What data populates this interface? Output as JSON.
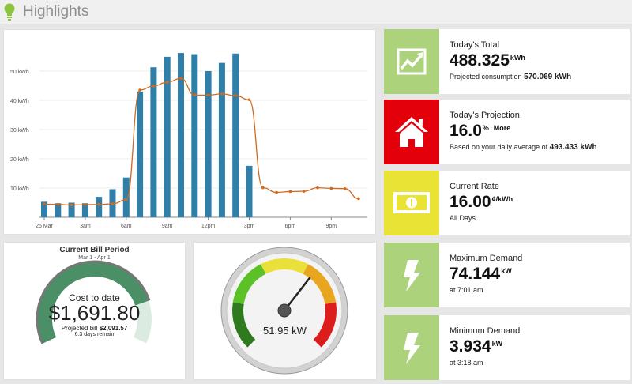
{
  "header": {
    "title": "Highlights",
    "icon": "lightbulb-icon",
    "icon_color": "#8cc43e"
  },
  "chart_data": {
    "type": "bar",
    "bar_color": "#2f7fa8",
    "line_color": "#d2691e",
    "x_tick_labels": [
      "25 Mar",
      "3am",
      "6am",
      "9am",
      "12pm",
      "3pm",
      "6pm",
      "9pm"
    ],
    "x_tick_hours": [
      0,
      3,
      6,
      9,
      12,
      15,
      18,
      21
    ],
    "y_tick_labels": [
      "10 kWh",
      "20 kWh",
      "30 kWh",
      "40 kWh",
      "50 kWh"
    ],
    "y_ticks": [
      10,
      20,
      30,
      40,
      50
    ],
    "ylim": [
      0,
      60
    ],
    "grid": true,
    "series": [
      {
        "type": "bar",
        "hours": [
          0,
          1,
          2,
          3,
          4,
          5,
          6,
          7,
          8,
          9,
          10,
          11,
          12,
          13,
          14,
          15
        ],
        "values": [
          5.3,
          4.8,
          5.0,
          4.8,
          7.0,
          9.6,
          13.6,
          43.0,
          51.3,
          54.9,
          56.2,
          55.8,
          50.0,
          52.8,
          56.0,
          17.6
        ]
      },
      {
        "type": "line",
        "hours": [
          0,
          1,
          2,
          3,
          4,
          5,
          6,
          7,
          8,
          9,
          10,
          11,
          12,
          13,
          14,
          15,
          16,
          17,
          18,
          19,
          20,
          21,
          22,
          23
        ],
        "values": [
          4.5,
          4.4,
          4.2,
          4.3,
          4.4,
          4.6,
          6.0,
          43.5,
          44.9,
          46.2,
          47.5,
          41.8,
          41.8,
          42.2,
          41.6,
          40.2,
          10.1,
          8.5,
          8.8,
          8.9,
          10.1,
          9.9,
          9.8,
          6.4
        ]
      }
    ]
  },
  "cards": [
    {
      "title": "Today's Total",
      "value": "488.325",
      "unit": "kWh",
      "note": "",
      "sub_prefix": "Projected consumption ",
      "sub_bold": "570.069 kWh",
      "icon": "trend-chart-icon",
      "color": "#acd27c"
    },
    {
      "title": "Today's Projection",
      "value": "16.0",
      "unit": "%",
      "note": "More",
      "sub_prefix": "Based on your daily average of ",
      "sub_bold": "493.433 kWh",
      "icon": "house-icon",
      "color": "#e3000b"
    },
    {
      "title": "Current Rate",
      "value": "16.00",
      "unit": "¢/kWh",
      "note": "",
      "sub_prefix": "All Days",
      "sub_bold": "",
      "icon": "money-icon",
      "color": "#e8e335"
    },
    {
      "title": "Maximum Demand",
      "value": "74.144",
      "unit": "kW",
      "note": "",
      "sub_prefix": "at 7:01 am",
      "sub_bold": "",
      "icon": "lightning-icon",
      "color": "#acd27c"
    },
    {
      "title": "Minimum Demand",
      "value": "3.934",
      "unit": "kW",
      "note": "",
      "sub_prefix": "at 3:18 am",
      "sub_bold": "",
      "icon": "lightning-icon",
      "color": "#acd27c"
    }
  ],
  "bill": {
    "title": "Current Bill Period",
    "range": "Mar 1 - Apr 1",
    "label": "Cost to date",
    "amount": "$1,691.80",
    "projected_prefix": "Projected bill ",
    "projected_value": "$2,091.57",
    "days_remain": "6.3 days remain",
    "fraction_to_date": 0.809,
    "fill_color": "#4a8f65",
    "remain_color": "#dcebe2"
  },
  "gauge": {
    "reading": "51.95 kW",
    "needle_fraction": 0.64,
    "band_colors": [
      "#2f7a1f",
      "#5bc127",
      "#e9e03a",
      "#e8a51f",
      "#dd1c1c"
    ]
  }
}
